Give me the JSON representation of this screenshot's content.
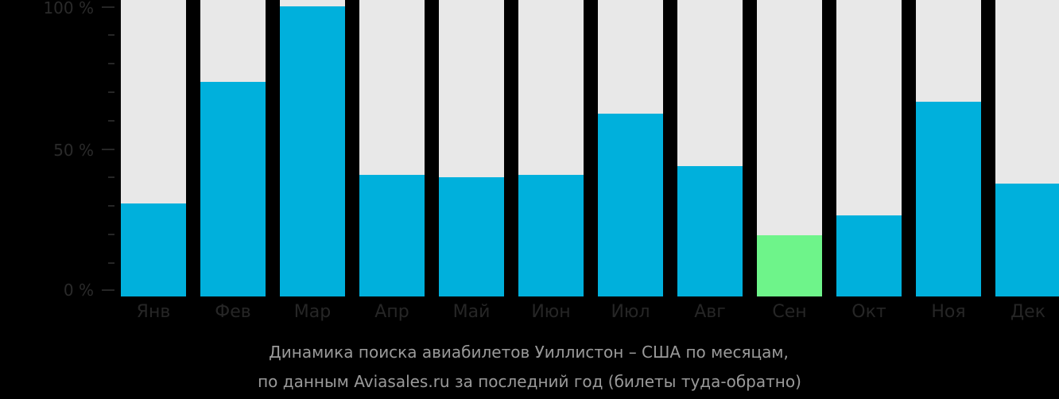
{
  "chart_data": {
    "type": "bar",
    "title": "Динамика поиска авиабилетов Уиллистон – США по месяцам,",
    "subtitle": "по данным Aviasales.ru за последний год (билеты туда-обратно)",
    "xlabel": "",
    "ylabel": "",
    "ylim": [
      0,
      100
    ],
    "yticks": [
      "0 %",
      "50 %",
      "100 %"
    ],
    "categories": [
      "Янв",
      "Фев",
      "Мар",
      "Апр",
      "Май",
      "Июн",
      "Июл",
      "Авг",
      "Сен",
      "Окт",
      "Ноя",
      "Дек"
    ],
    "values": [
      32,
      74,
      100,
      42,
      41,
      42,
      63,
      45,
      21,
      28,
      67,
      39
    ],
    "highlight_index": 8,
    "colors": {
      "bar": "#00b0dc",
      "highlight": "#6ef48a",
      "background_bar": "#e8e8e8",
      "page": "#000000"
    },
    "grid": false,
    "legend": null
  }
}
